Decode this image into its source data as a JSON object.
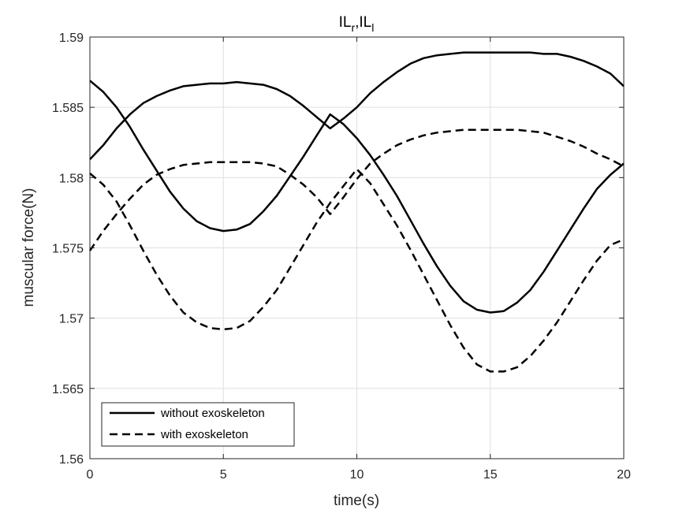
{
  "chart_data": {
    "type": "line",
    "title": {
      "base1": "IL",
      "sub1": "r",
      "sep": ",",
      "base2": "IL",
      "sub2": "l"
    },
    "xlabel": "time(s)",
    "ylabel": "muscular force(N)",
    "xlim": [
      0,
      20
    ],
    "ylim": [
      1.56,
      1.59
    ],
    "xticks": [
      0,
      5,
      10,
      15,
      20
    ],
    "xtick_labels": [
      "0",
      "5",
      "10",
      "15",
      "20"
    ],
    "yticks": [
      1.56,
      1.565,
      1.57,
      1.575,
      1.58,
      1.585,
      1.59
    ],
    "ytick_labels": [
      "1.56",
      "1.565",
      "1.57",
      "1.575",
      "1.58",
      "1.585",
      "1.59"
    ],
    "grid": true,
    "legend_position": "bottom-left",
    "legend": [
      {
        "label": "without exoskeleton",
        "style": "solid"
      },
      {
        "label": "with exoskeleton",
        "style": "dashed"
      }
    ],
    "series": [
      {
        "legend_index": 0,
        "style": "solid",
        "color": "#000000",
        "x": [
          0,
          0.5,
          1,
          1.5,
          2,
          2.5,
          3,
          3.5,
          4,
          4.5,
          5,
          5.5,
          6,
          6.5,
          7,
          7.5,
          8,
          8.5,
          9,
          9.5,
          10,
          10.5,
          11,
          11.5,
          12,
          12.5,
          13,
          13.5,
          14,
          14.5,
          15,
          15.5,
          16,
          16.5,
          17,
          17.5,
          18,
          18.5,
          19,
          19.5,
          20
        ],
        "y": [
          1.5869,
          1.5861,
          1.585,
          1.5836,
          1.582,
          1.5805,
          1.579,
          1.5778,
          1.5769,
          1.5764,
          1.5762,
          1.5763,
          1.5767,
          1.5776,
          1.5787,
          1.5801,
          1.5815,
          1.583,
          1.5845,
          1.5838,
          1.5828,
          1.5816,
          1.5802,
          1.5787,
          1.577,
          1.5753,
          1.5737,
          1.5723,
          1.5712,
          1.5706,
          1.5704,
          1.5705,
          1.5711,
          1.572,
          1.5733,
          1.5748,
          1.5763,
          1.5778,
          1.5792,
          1.5802,
          1.581
        ]
      },
      {
        "legend_index": 0,
        "style": "solid",
        "color": "#000000",
        "x": [
          0,
          0.5,
          1,
          1.5,
          2,
          2.5,
          3,
          3.5,
          4,
          4.5,
          5,
          5.5,
          6,
          6.5,
          7,
          7.5,
          8,
          8.5,
          9,
          9.5,
          10,
          10.5,
          11,
          11.5,
          12,
          12.5,
          13,
          13.5,
          14,
          14.5,
          15,
          15.5,
          16,
          16.5,
          17,
          17.5,
          18,
          18.5,
          19,
          19.5,
          20
        ],
        "y": [
          1.5813,
          1.5823,
          1.5835,
          1.5845,
          1.5853,
          1.5858,
          1.5862,
          1.5865,
          1.5866,
          1.5867,
          1.5867,
          1.5868,
          1.5867,
          1.5866,
          1.5863,
          1.5858,
          1.5851,
          1.5843,
          1.5835,
          1.5842,
          1.585,
          1.586,
          1.5868,
          1.5875,
          1.5881,
          1.5885,
          1.5887,
          1.5888,
          1.5889,
          1.5889,
          1.5889,
          1.5889,
          1.5889,
          1.5889,
          1.5888,
          1.5888,
          1.5886,
          1.5883,
          1.5879,
          1.5874,
          1.5865
        ]
      },
      {
        "legend_index": 1,
        "style": "dashed",
        "color": "#000000",
        "x": [
          0,
          0.5,
          1,
          1.5,
          2,
          2.5,
          3,
          3.5,
          4,
          4.5,
          5,
          5.5,
          6,
          6.5,
          7,
          7.5,
          8,
          8.5,
          9,
          9.5,
          10,
          10.5,
          11,
          11.5,
          12,
          12.5,
          13,
          13.5,
          14,
          14.5,
          15,
          15.5,
          16,
          16.5,
          17,
          17.5,
          18,
          18.5,
          19,
          19.5,
          20
        ],
        "y": [
          1.5803,
          1.5795,
          1.5783,
          1.5766,
          1.5748,
          1.5731,
          1.5716,
          1.5704,
          1.5697,
          1.5693,
          1.5692,
          1.5693,
          1.5698,
          1.5708,
          1.572,
          1.5736,
          1.5752,
          1.5768,
          1.5782,
          1.5794,
          1.5806,
          1.5796,
          1.5781,
          1.5766,
          1.5749,
          1.5731,
          1.5713,
          1.5695,
          1.5679,
          1.5667,
          1.5662,
          1.5662,
          1.5665,
          1.5673,
          1.5684,
          1.5697,
          1.5712,
          1.5727,
          1.5741,
          1.5752,
          1.5756
        ]
      },
      {
        "legend_index": 1,
        "style": "dashed",
        "color": "#000000",
        "x": [
          0,
          0.5,
          1,
          1.5,
          2,
          2.5,
          3,
          3.5,
          4,
          4.5,
          5,
          5.5,
          6,
          6.5,
          7,
          7.5,
          8,
          8.5,
          9,
          9.5,
          10,
          10.5,
          11,
          11.5,
          12,
          12.5,
          13,
          13.5,
          14,
          14.5,
          15,
          15.5,
          16,
          16.5,
          17,
          17.5,
          18,
          18.5,
          19,
          19.5,
          20
        ],
        "y": [
          1.5748,
          1.5762,
          1.5774,
          1.5785,
          1.5795,
          1.5802,
          1.5806,
          1.5809,
          1.581,
          1.5811,
          1.5811,
          1.5811,
          1.5811,
          1.581,
          1.5808,
          1.5802,
          1.5795,
          1.5786,
          1.5774,
          1.5786,
          1.5799,
          1.581,
          1.5817,
          1.5823,
          1.5827,
          1.583,
          1.5832,
          1.5833,
          1.5834,
          1.5834,
          1.5834,
          1.5834,
          1.5834,
          1.5833,
          1.5832,
          1.5829,
          1.5826,
          1.5822,
          1.5817,
          1.5813,
          1.5808
        ]
      }
    ]
  }
}
